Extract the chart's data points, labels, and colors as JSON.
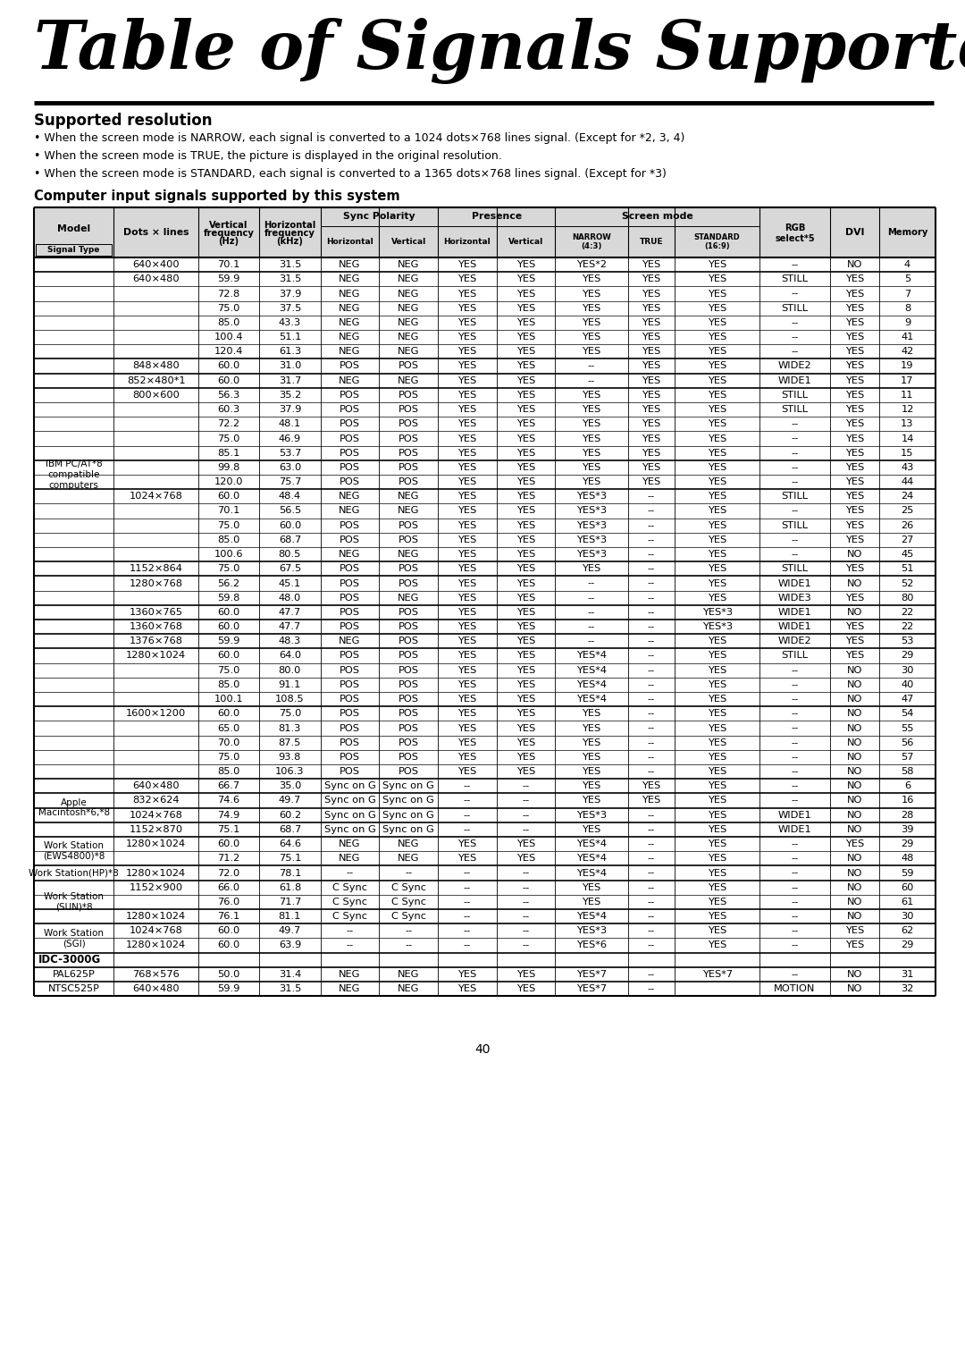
{
  "title": "Table of Signals Supported",
  "subtitle": "Supported resolution",
  "bullets": [
    "When the screen mode is NARROW, each signal is converted to a 1024 dots×768 lines signal. (Except for *2, 3, 4)",
    "When the screen mode is TRUE, the picture is displayed in the original resolution.",
    "When the screen mode is STANDARD, each signal is converted to a 1365 dots×768 lines signal. (Except for *3)"
  ],
  "computer_title": "Computer input signals supported by this system",
  "page_number": "40",
  "rows": [
    [
      "",
      "640×400",
      "70.1",
      "31.5",
      "NEG",
      "NEG",
      "YES",
      "YES",
      "YES*2",
      "YES",
      "YES",
      "--",
      "NO",
      "4"
    ],
    [
      "",
      "640×480",
      "59.9",
      "31.5",
      "NEG",
      "NEG",
      "YES",
      "YES",
      "YES",
      "YES",
      "YES",
      "STILL",
      "YES",
      "5"
    ],
    [
      "",
      "",
      "72.8",
      "37.9",
      "NEG",
      "NEG",
      "YES",
      "YES",
      "YES",
      "YES",
      "YES",
      "--",
      "YES",
      "7"
    ],
    [
      "",
      "",
      "75.0",
      "37.5",
      "NEG",
      "NEG",
      "YES",
      "YES",
      "YES",
      "YES",
      "YES",
      "STILL",
      "YES",
      "8"
    ],
    [
      "",
      "",
      "85.0",
      "43.3",
      "NEG",
      "NEG",
      "YES",
      "YES",
      "YES",
      "YES",
      "YES",
      "--",
      "YES",
      "9"
    ],
    [
      "",
      "",
      "100.4",
      "51.1",
      "NEG",
      "NEG",
      "YES",
      "YES",
      "YES",
      "YES",
      "YES",
      "--",
      "YES",
      "41"
    ],
    [
      "",
      "",
      "120.4",
      "61.3",
      "NEG",
      "NEG",
      "YES",
      "YES",
      "YES",
      "YES",
      "YES",
      "--",
      "YES",
      "42"
    ],
    [
      "",
      "848×480",
      "60.0",
      "31.0",
      "POS",
      "POS",
      "YES",
      "YES",
      "--",
      "YES",
      "YES",
      "WIDE2",
      "YES",
      "19"
    ],
    [
      "",
      "852×480*1",
      "60.0",
      "31.7",
      "NEG",
      "NEG",
      "YES",
      "YES",
      "--",
      "YES",
      "YES",
      "WIDE1",
      "YES",
      "17"
    ],
    [
      "",
      "800×600",
      "56.3",
      "35.2",
      "POS",
      "POS",
      "YES",
      "YES",
      "YES",
      "YES",
      "YES",
      "STILL",
      "YES",
      "11"
    ],
    [
      "",
      "",
      "60.3",
      "37.9",
      "POS",
      "POS",
      "YES",
      "YES",
      "YES",
      "YES",
      "YES",
      "STILL",
      "YES",
      "12"
    ],
    [
      "",
      "",
      "72.2",
      "48.1",
      "POS",
      "POS",
      "YES",
      "YES",
      "YES",
      "YES",
      "YES",
      "--",
      "YES",
      "13"
    ],
    [
      "",
      "",
      "75.0",
      "46.9",
      "POS",
      "POS",
      "YES",
      "YES",
      "YES",
      "YES",
      "YES",
      "--",
      "YES",
      "14"
    ],
    [
      "",
      "",
      "85.1",
      "53.7",
      "POS",
      "POS",
      "YES",
      "YES",
      "YES",
      "YES",
      "YES",
      "--",
      "YES",
      "15"
    ],
    [
      "IBM PC/AT*8\ncompatible\ncomputers",
      "",
      "99.8",
      "63.0",
      "POS",
      "POS",
      "YES",
      "YES",
      "YES",
      "YES",
      "YES",
      "--",
      "YES",
      "43"
    ],
    [
      "",
      "",
      "120.0",
      "75.7",
      "POS",
      "POS",
      "YES",
      "YES",
      "YES",
      "YES",
      "YES",
      "--",
      "YES",
      "44"
    ],
    [
      "",
      "1024×768",
      "60.0",
      "48.4",
      "NEG",
      "NEG",
      "YES",
      "YES",
      "YES*3",
      "--",
      "YES",
      "STILL",
      "YES",
      "24"
    ],
    [
      "",
      "",
      "70.1",
      "56.5",
      "NEG",
      "NEG",
      "YES",
      "YES",
      "YES*3",
      "--",
      "YES",
      "--",
      "YES",
      "25"
    ],
    [
      "",
      "",
      "75.0",
      "60.0",
      "POS",
      "POS",
      "YES",
      "YES",
      "YES*3",
      "--",
      "YES",
      "STILL",
      "YES",
      "26"
    ],
    [
      "",
      "",
      "85.0",
      "68.7",
      "POS",
      "POS",
      "YES",
      "YES",
      "YES*3",
      "--",
      "YES",
      "--",
      "YES",
      "27"
    ],
    [
      "",
      "",
      "100.6",
      "80.5",
      "NEG",
      "NEG",
      "YES",
      "YES",
      "YES*3",
      "--",
      "YES",
      "--",
      "NO",
      "45"
    ],
    [
      "",
      "1152×864",
      "75.0",
      "67.5",
      "POS",
      "POS",
      "YES",
      "YES",
      "YES",
      "--",
      "YES",
      "STILL",
      "YES",
      "51"
    ],
    [
      "",
      "1280×768",
      "56.2",
      "45.1",
      "POS",
      "POS",
      "YES",
      "YES",
      "--",
      "--",
      "YES",
      "WIDE1",
      "NO",
      "52"
    ],
    [
      "",
      "",
      "59.8",
      "48.0",
      "POS",
      "NEG",
      "YES",
      "YES",
      "--",
      "--",
      "YES",
      "WIDE3",
      "YES",
      "80"
    ],
    [
      "",
      "1360×765",
      "60.0",
      "47.7",
      "POS",
      "POS",
      "YES",
      "YES",
      "--",
      "--",
      "YES*3",
      "WIDE1",
      "NO",
      "22"
    ],
    [
      "",
      "1360×768",
      "60.0",
      "47.7",
      "POS",
      "POS",
      "YES",
      "YES",
      "--",
      "--",
      "YES*3",
      "WIDE1",
      "YES",
      "22"
    ],
    [
      "",
      "1376×768",
      "59.9",
      "48.3",
      "NEG",
      "POS",
      "YES",
      "YES",
      "--",
      "--",
      "YES",
      "WIDE2",
      "YES",
      "53"
    ],
    [
      "",
      "1280×1024",
      "60.0",
      "64.0",
      "POS",
      "POS",
      "YES",
      "YES",
      "YES*4",
      "--",
      "YES",
      "STILL",
      "YES",
      "29"
    ],
    [
      "",
      "",
      "75.0",
      "80.0",
      "POS",
      "POS",
      "YES",
      "YES",
      "YES*4",
      "--",
      "YES",
      "--",
      "NO",
      "30"
    ],
    [
      "",
      "",
      "85.0",
      "91.1",
      "POS",
      "POS",
      "YES",
      "YES",
      "YES*4",
      "--",
      "YES",
      "--",
      "NO",
      "40"
    ],
    [
      "",
      "",
      "100.1",
      "108.5",
      "POS",
      "POS",
      "YES",
      "YES",
      "YES*4",
      "--",
      "YES",
      "--",
      "NO",
      "47"
    ],
    [
      "",
      "1600×1200",
      "60.0",
      "75.0",
      "POS",
      "POS",
      "YES",
      "YES",
      "YES",
      "--",
      "YES",
      "--",
      "NO",
      "54"
    ],
    [
      "",
      "",
      "65.0",
      "81.3",
      "POS",
      "POS",
      "YES",
      "YES",
      "YES",
      "--",
      "YES",
      "--",
      "NO",
      "55"
    ],
    [
      "",
      "",
      "70.0",
      "87.5",
      "POS",
      "POS",
      "YES",
      "YES",
      "YES",
      "--",
      "YES",
      "--",
      "NO",
      "56"
    ],
    [
      "",
      "",
      "75.0",
      "93.8",
      "POS",
      "POS",
      "YES",
      "YES",
      "YES",
      "--",
      "YES",
      "--",
      "NO",
      "57"
    ],
    [
      "",
      "",
      "85.0",
      "106.3",
      "POS",
      "POS",
      "YES",
      "YES",
      "YES",
      "--",
      "YES",
      "--",
      "NO",
      "58"
    ],
    [
      "Apple\nMacintosh*6,*8",
      "640×480",
      "66.7",
      "35.0",
      "Sync on G",
      "Sync on G",
      "--",
      "--",
      "YES",
      "YES",
      "YES",
      "--",
      "NO",
      "6"
    ],
    [
      "",
      "832×624",
      "74.6",
      "49.7",
      "Sync on G",
      "Sync on G",
      "--",
      "--",
      "YES",
      "YES",
      "YES",
      "--",
      "NO",
      "16"
    ],
    [
      "",
      "1024×768",
      "74.9",
      "60.2",
      "Sync on G",
      "Sync on G",
      "--",
      "--",
      "YES*3",
      "--",
      "YES",
      "WIDE1",
      "NO",
      "28"
    ],
    [
      "",
      "1152×870",
      "75.1",
      "68.7",
      "Sync on G",
      "Sync on G",
      "--",
      "--",
      "YES",
      "--",
      "YES",
      "WIDE1",
      "NO",
      "39"
    ],
    [
      "Work Station\n(EWS4800)*8",
      "1280×1024",
      "60.0",
      "64.6",
      "NEG",
      "NEG",
      "YES",
      "YES",
      "YES*4",
      "--",
      "YES",
      "--",
      "YES",
      "29"
    ],
    [
      "",
      "",
      "71.2",
      "75.1",
      "NEG",
      "NEG",
      "YES",
      "YES",
      "YES*4",
      "--",
      "YES",
      "--",
      "NO",
      "48"
    ],
    [
      "Work Station(HP)*8",
      "1280×1024",
      "72.0",
      "78.1",
      "--",
      "--",
      "--",
      "--",
      "YES*4",
      "--",
      "YES",
      "--",
      "NO",
      "59"
    ],
    [
      "Work Station\n(SUN)*8",
      "1152×900",
      "66.0",
      "61.8",
      "C Sync",
      "C Sync",
      "--",
      "--",
      "YES",
      "--",
      "YES",
      "--",
      "NO",
      "60"
    ],
    [
      "",
      "",
      "76.0",
      "71.7",
      "C Sync",
      "C Sync",
      "--",
      "--",
      "YES",
      "--",
      "YES",
      "--",
      "NO",
      "61"
    ],
    [
      "",
      "1280×1024",
      "76.1",
      "81.1",
      "C Sync",
      "C Sync",
      "--",
      "--",
      "YES*4",
      "--",
      "YES",
      "--",
      "NO",
      "30"
    ],
    [
      "Work Station\n(SGI)",
      "1024×768",
      "60.0",
      "49.7",
      "--",
      "--",
      "--",
      "--",
      "YES*3",
      "--",
      "YES",
      "--",
      "YES",
      "62"
    ],
    [
      "",
      "1280×1024",
      "60.0",
      "63.9",
      "--",
      "--",
      "--",
      "--",
      "YES*6",
      "--",
      "YES",
      "--",
      "YES",
      "29"
    ],
    [
      "IDC-3000G",
      "",
      "",
      "",
      "",
      "",
      "",
      "",
      "",
      "",
      "",
      "",
      "",
      ""
    ],
    [
      "PAL625P",
      "768×576",
      "50.0",
      "31.4",
      "NEG",
      "NEG",
      "YES",
      "YES",
      "YES*7",
      "--",
      "YES*7",
      "--",
      "NO",
      "31"
    ],
    [
      "NTSC525P",
      "640×480",
      "59.9",
      "31.5",
      "NEG",
      "NEG",
      "YES",
      "YES",
      "YES*7",
      "--",
      "",
      "MOTION",
      "NO",
      "32"
    ]
  ],
  "thick_above": [
    0,
    1,
    7,
    8,
    9,
    14,
    16,
    21,
    22,
    24,
    25,
    26,
    27,
    31,
    36,
    37,
    38,
    39,
    40,
    42,
    43,
    45,
    46,
    48,
    49,
    50
  ],
  "model_spans": [
    [
      14,
      16,
      "IBM PC/AT*8\ncompatible\ncomputers"
    ],
    [
      36,
      40,
      "Apple\nMacintosh*6,*8"
    ],
    [
      40,
      42,
      "Work Station\n(EWS4800)*8"
    ],
    [
      42,
      43,
      "Work Station(HP)*8"
    ],
    [
      43,
      46,
      "Work Station\n(SUN)*8"
    ],
    [
      46,
      48,
      "Work Station\n(SGI)"
    ]
  ],
  "idc_row": 48,
  "pal_row": 49,
  "ntsc_row": 50
}
